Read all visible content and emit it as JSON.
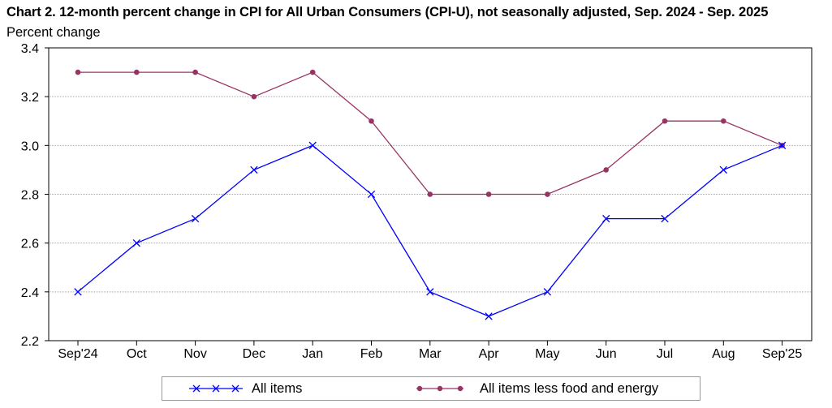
{
  "chart_data": {
    "type": "line",
    "title": "Chart 2. 12-month percent change in CPI for All Urban Consumers (CPI-U), not seasonally adjusted, Sep. 2024 - Sep. 2025",
    "ylabel": "Percent change",
    "xlabel": "",
    "categories": [
      "Sep'24",
      "Oct",
      "Nov",
      "Dec",
      "Jan",
      "Feb",
      "Mar",
      "Apr",
      "May",
      "Jun",
      "Jul",
      "Aug",
      "Sep'25"
    ],
    "ylim": [
      2.2,
      3.4
    ],
    "yticks": [
      "2.2",
      "2.4",
      "2.6",
      "2.8",
      "3.0",
      "3.2",
      "3.4"
    ],
    "grid": "horizontal",
    "legend_position": "bottom",
    "series": [
      {
        "name": "All items",
        "color": "#0000ff",
        "marker": "x",
        "values": [
          2.4,
          2.6,
          2.7,
          2.9,
          3.0,
          2.8,
          2.4,
          2.3,
          2.4,
          2.7,
          2.7,
          2.9,
          3.0
        ]
      },
      {
        "name": "All items less food and energy",
        "color": "#993366",
        "marker": "circle",
        "values": [
          3.3,
          3.3,
          3.3,
          3.2,
          3.3,
          3.1,
          2.8,
          2.8,
          2.8,
          2.9,
          3.1,
          3.1,
          3.0
        ]
      }
    ]
  }
}
